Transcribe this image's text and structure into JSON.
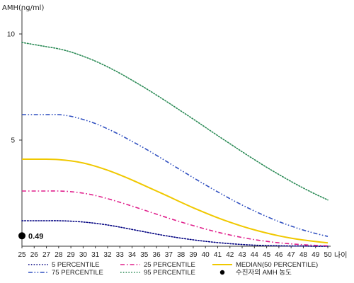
{
  "chart_data": {
    "type": "line",
    "ylabel": "AMH(ng/ml)",
    "xlabel": "나이",
    "xlim": [
      25,
      50
    ],
    "ylim": [
      0,
      11
    ],
    "yticks": [
      5,
      10
    ],
    "x": [
      25,
      26,
      27,
      28,
      29,
      30,
      31,
      32,
      33,
      34,
      35,
      36,
      37,
      38,
      39,
      40,
      41,
      42,
      43,
      44,
      45,
      46,
      47,
      48,
      49,
      50
    ],
    "series": [
      {
        "name": "5 PERCENTILE",
        "color": "#000080",
        "style": "dotted",
        "values": [
          1.2,
          1.2,
          1.2,
          1.2,
          1.18,
          1.14,
          1.08,
          1.0,
          0.9,
          0.79,
          0.68,
          0.57,
          0.47,
          0.38,
          0.3,
          0.23,
          0.17,
          0.12,
          0.08,
          0.05,
          0.03,
          0.02,
          0.01,
          0.01,
          0.0,
          0.0
        ]
      },
      {
        "name": "25 PERCENTILE",
        "color": "#e0208c",
        "style": "dashdot",
        "values": [
          2.6,
          2.6,
          2.6,
          2.6,
          2.57,
          2.5,
          2.39,
          2.24,
          2.07,
          1.89,
          1.7,
          1.51,
          1.32,
          1.14,
          0.97,
          0.81,
          0.66,
          0.53,
          0.41,
          0.31,
          0.23,
          0.16,
          0.11,
          0.07,
          0.04,
          0.02
        ]
      },
      {
        "name": "MEDIAN(50 PERCENTILE)",
        "color": "#f0c800",
        "style": "solid",
        "values": [
          4.1,
          4.1,
          4.1,
          4.08,
          4.02,
          3.92,
          3.77,
          3.58,
          3.36,
          3.12,
          2.86,
          2.6,
          2.34,
          2.07,
          1.81,
          1.57,
          1.34,
          1.13,
          0.94,
          0.77,
          0.62,
          0.49,
          0.38,
          0.29,
          0.22,
          0.16
        ]
      },
      {
        "name": "75 PERCENTILE",
        "color": "#3050c0",
        "style": "dashdotdot",
        "values": [
          6.2,
          6.2,
          6.2,
          6.2,
          6.12,
          5.97,
          5.78,
          5.53,
          5.25,
          4.94,
          4.62,
          4.28,
          3.93,
          3.58,
          3.23,
          2.89,
          2.56,
          2.24,
          1.94,
          1.66,
          1.4,
          1.16,
          0.95,
          0.76,
          0.6,
          0.46
        ]
      },
      {
        "name": "95 PERCENTILE",
        "color": "#2a8a55",
        "style": "dotted",
        "values": [
          9.6,
          9.5,
          9.4,
          9.3,
          9.15,
          8.95,
          8.72,
          8.45,
          8.15,
          7.82,
          7.48,
          7.12,
          6.75,
          6.37,
          5.99,
          5.6,
          5.21,
          4.83,
          4.45,
          4.08,
          3.72,
          3.38,
          3.05,
          2.74,
          2.45,
          2.18
        ]
      }
    ],
    "point": {
      "name": "수진자의 AMH 농도",
      "x": 25,
      "y": 0.49,
      "label": "0.49",
      "color": "#000000"
    },
    "legend": {
      "placement": "bottom",
      "entries": [
        {
          "name": "5 PERCENTILE",
          "color": "#000080",
          "style": "dotted"
        },
        {
          "name": "25 PERCENTILE",
          "color": "#e0208c",
          "style": "dashdot"
        },
        {
          "name": "MEDIAN(50 PERCENTILE)",
          "color": "#f0c800",
          "style": "solid"
        },
        {
          "name": "75 PERCENTILE",
          "color": "#3050c0",
          "style": "dashdotdot"
        },
        {
          "name": "95 PERCENTILE",
          "color": "#2a8a55",
          "style": "dotted"
        },
        {
          "name": "수진자의 AMH 농도",
          "color": "#000000",
          "style": "marker"
        }
      ]
    },
    "grid": false
  }
}
